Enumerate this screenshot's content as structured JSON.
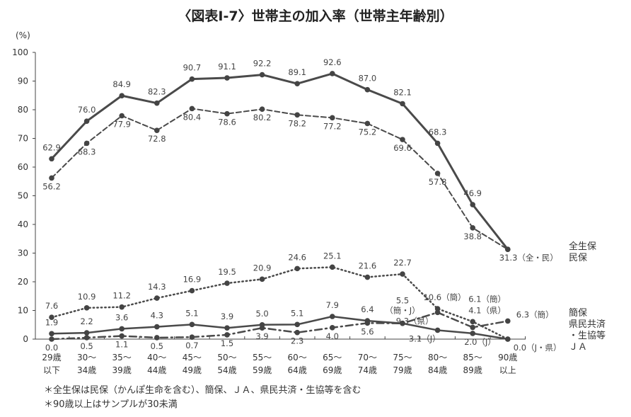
{
  "chart_data": {
    "type": "line",
    "title": "〈図表Ⅰ-7〉世帯主の加入率（世帯主年齢別）",
    "ylabel": "(%)",
    "ylim": [
      0,
      100
    ],
    "yticks": [
      0,
      10,
      20,
      30,
      40,
      50,
      60,
      70,
      80,
      90,
      100
    ],
    "categories": [
      [
        "29歳",
        "以下"
      ],
      [
        "30～",
        "34歳"
      ],
      [
        "35～",
        "39歳"
      ],
      [
        "40～",
        "44歳"
      ],
      [
        "45～",
        "49歳"
      ],
      [
        "50～",
        "54歳"
      ],
      [
        "55～",
        "59歳"
      ],
      [
        "60～",
        "64歳"
      ],
      [
        "65～",
        "69歳"
      ],
      [
        "70～",
        "74歳"
      ],
      [
        "75～",
        "79歳"
      ],
      [
        "80～",
        "84歳"
      ],
      [
        "85～",
        "89歳"
      ],
      [
        "90歳",
        "以上"
      ]
    ],
    "series": [
      {
        "name": "全生保",
        "style": "solid",
        "values": [
          62.9,
          76.0,
          84.9,
          82.3,
          90.7,
          91.1,
          92.2,
          89.1,
          92.6,
          87.0,
          82.1,
          68.3,
          46.9,
          31.3
        ],
        "labels": [
          "62.9",
          "76.0",
          "84.9",
          "82.3",
          "90.7",
          "91.1",
          "92.2",
          "89.1",
          "92.6",
          "87.0",
          "82.1",
          "68.3",
          "46.9",
          "31.3（全・民）"
        ]
      },
      {
        "name": "民保",
        "style": "dashed",
        "values": [
          56.2,
          68.3,
          77.9,
          72.8,
          80.4,
          78.6,
          80.2,
          78.2,
          77.2,
          75.2,
          69.6,
          57.8,
          38.8,
          31.3
        ],
        "labels": [
          "56.2",
          "68.3",
          "77.9",
          "72.8",
          "80.4",
          "78.6",
          "80.2",
          "78.2",
          "77.2",
          "75.2",
          "69.6",
          "57.8",
          "38.8",
          ""
        ]
      },
      {
        "name": "簡保",
        "style": "dotted",
        "values": [
          7.6,
          10.9,
          11.2,
          14.3,
          16.9,
          19.5,
          20.9,
          24.6,
          25.1,
          21.6,
          22.7,
          10.6,
          6.1,
          0.0
        ],
        "labels": [
          "7.6",
          "10.9",
          "11.2",
          "14.3",
          "16.9",
          "19.5",
          "20.9",
          "24.6",
          "25.1",
          "21.6",
          "22.7",
          "10.6（簡）",
          "6.1（簡）",
          ""
        ]
      },
      {
        "name": "県民共済・生協等",
        "style": "solid-thin",
        "values": [
          1.9,
          2.2,
          3.6,
          4.3,
          5.1,
          3.9,
          5.0,
          5.1,
          7.9,
          6.4,
          5.5,
          3.1,
          2.0,
          0.0
        ],
        "labels": [
          "1.9",
          "2.2",
          "3.6",
          "4.3",
          "5.1",
          "3.9",
          "5.0",
          "5.1",
          "7.9",
          "6.4",
          "5.5\n（簡・J）",
          "3.1（J）",
          "2.0（J）",
          "0.0（J・県）"
        ]
      },
      {
        "name": "ＪＡ",
        "style": "dashdot",
        "values": [
          0.0,
          0.5,
          1.1,
          0.5,
          0.7,
          1.5,
          3.9,
          2.3,
          4.0,
          5.6,
          5.5,
          9.3,
          4.1,
          6.3
        ],
        "labels": [
          "0.0",
          "0.5",
          "1.1",
          "0.5",
          "0.7",
          "1.5",
          "3.9",
          "2.3",
          "4.0",
          "5.6",
          "",
          "9.3（県）",
          "4.1（県）",
          "6.3（簡）"
        ]
      }
    ],
    "legend": [
      "全生保",
      "民保",
      "簡保",
      "県民共済",
      "・生協等",
      "ＪＡ"
    ],
    "legend_placement": "right",
    "notes": [
      "＊全生保は民保（かんぽ生命を含む）、簡保、ＪＡ、県民共済・生協等を含む",
      "＊90歳以上はサンプルが30未満"
    ]
  }
}
